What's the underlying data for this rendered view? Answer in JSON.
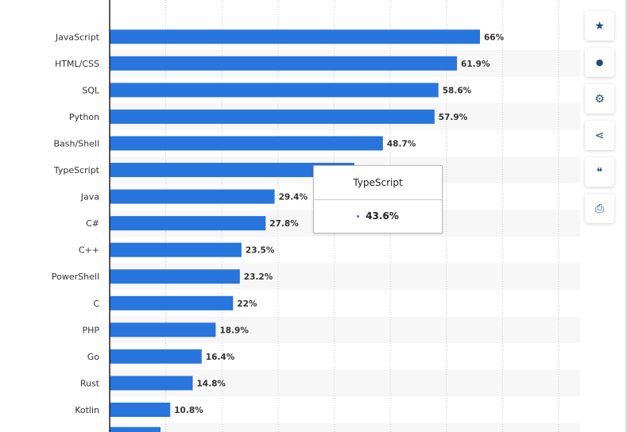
{
  "chart_data": {
    "type": "bar",
    "orientation": "horizontal",
    "categories": [
      "JavaScript",
      "HTML/CSS",
      "SQL",
      "Python",
      "Bash/Shell",
      "TypeScript",
      "Java",
      "C#",
      "C++",
      "PowerShell",
      "C",
      "PHP",
      "Go",
      "Rust",
      "Kotlin"
    ],
    "values": [
      66,
      61.9,
      58.6,
      57.9,
      48.7,
      43.6,
      29.4,
      27.8,
      23.5,
      23.2,
      22,
      18.9,
      16.4,
      14.8,
      10.8
    ],
    "labels": [
      "66%",
      "61.9%",
      "58.6%",
      "57.9%",
      "48.7%",
      "",
      "29.4%",
      "27.8%",
      "23.5%",
      "23.2%",
      "22%",
      "18.9%",
      "16.4%",
      "14.8%",
      "10.8%"
    ],
    "xlim": [
      0,
      80
    ],
    "grid": true,
    "bar_color": "#2876dd",
    "unit": "%"
  },
  "tooltip": {
    "title": "TypeScript",
    "value": "43.6%"
  },
  "toolbar": [
    {
      "icon": "star-icon",
      "glyph": "★"
    },
    {
      "icon": "bell-icon",
      "glyph": "🔔"
    },
    {
      "icon": "gear-icon",
      "glyph": "⚙"
    },
    {
      "icon": "share-icon",
      "glyph": "⋖"
    },
    {
      "icon": "quote-icon",
      "glyph": "❝"
    },
    {
      "icon": "print-icon",
      "glyph": "⎙"
    }
  ]
}
